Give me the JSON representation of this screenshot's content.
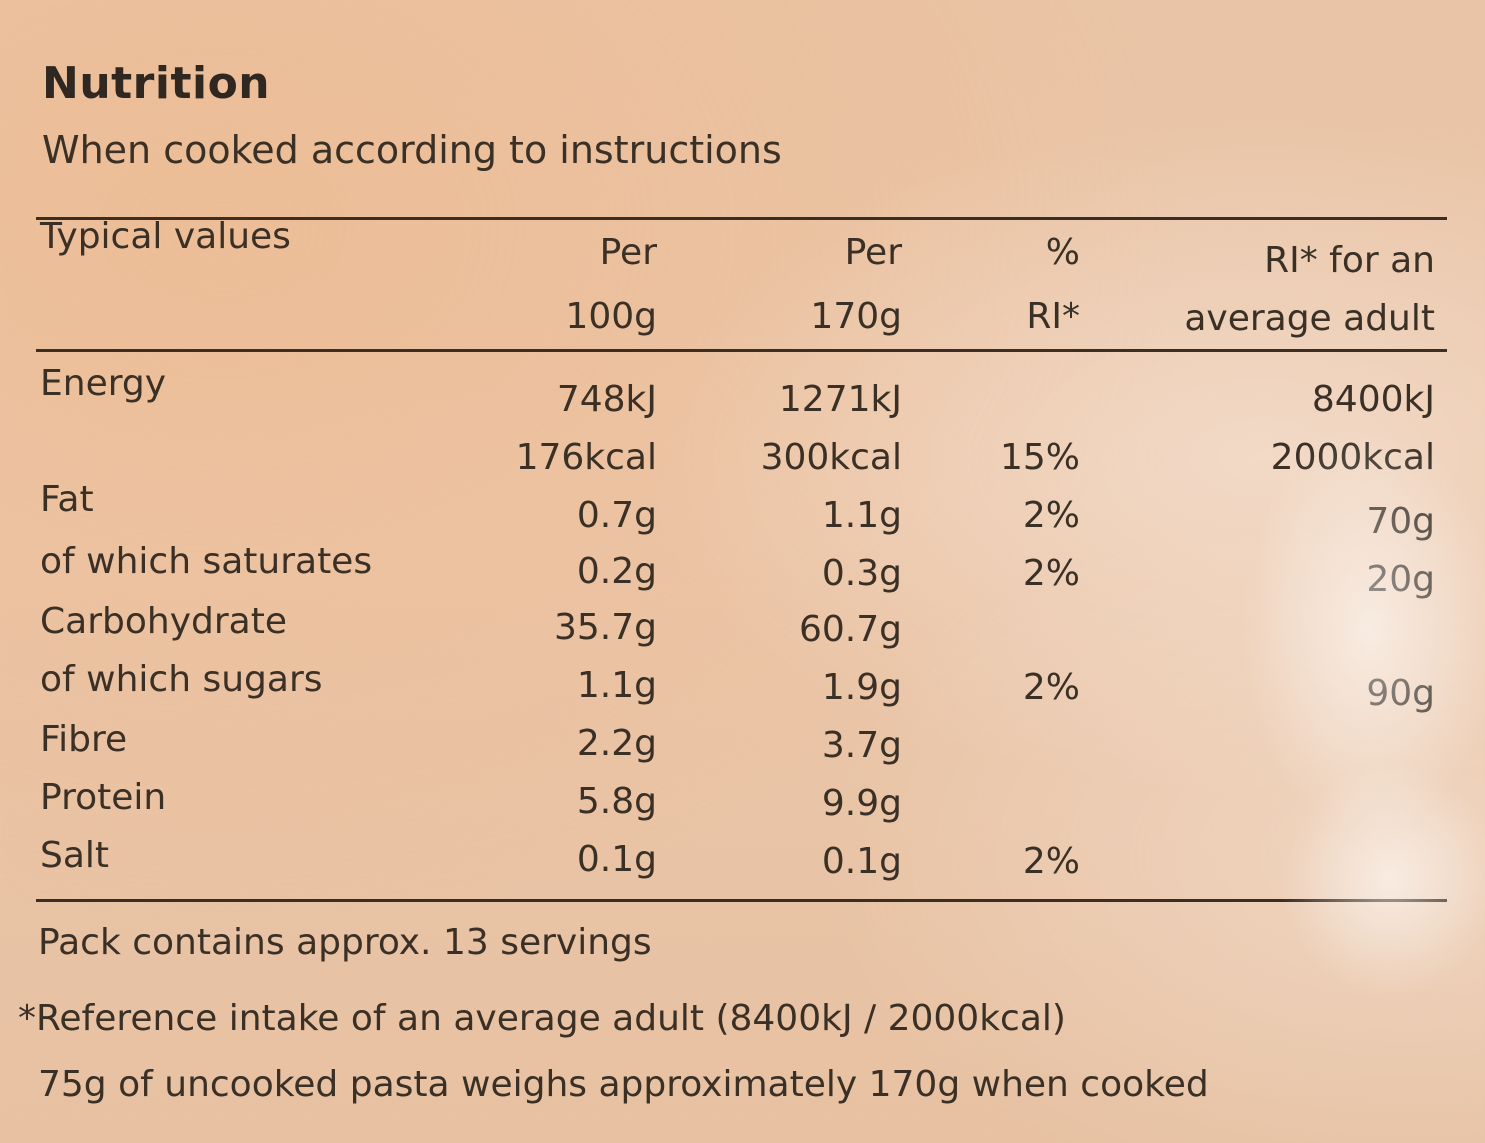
{
  "title": "Nutrition",
  "subtitle": "When cooked according to instructions",
  "table": {
    "headers": {
      "typical": "Typical values",
      "per100_line1": "Per",
      "per100_line2": "100g",
      "per170_line1": "Per",
      "per170_line2": "170g",
      "ri_line1": "%",
      "ri_line2": "RI*",
      "adult_line1": "RI* for an",
      "adult_line2": "average adult"
    },
    "rows": [
      {
        "name": "Energy",
        "per100": "748kJ",
        "per170": "1271kJ",
        "ri": "",
        "adult": "8400kJ"
      },
      {
        "name": "",
        "per100": "176kcal",
        "per170": "300kcal",
        "ri": "15%",
        "adult": "2000kcal"
      },
      {
        "name": "Fat",
        "per100": "0.7g",
        "per170": "1.1g",
        "ri": "2%",
        "adult": "70g"
      },
      {
        "name": "of which saturates",
        "per100": "0.2g",
        "per170": "0.3g",
        "ri": "2%",
        "adult": "20g"
      },
      {
        "name": "Carbohydrate",
        "per100": "35.7g",
        "per170": "60.7g",
        "ri": "",
        "adult": ""
      },
      {
        "name": "of which sugars",
        "per100": "1.1g",
        "per170": "1.9g",
        "ri": "2%",
        "adult": "90g"
      },
      {
        "name": "Fibre",
        "per100": "2.2g",
        "per170": "3.7g",
        "ri": "",
        "adult": ""
      },
      {
        "name": "Protein",
        "per100": "5.8g",
        "per170": "9.9g",
        "ri": "",
        "adult": ""
      },
      {
        "name": "Salt",
        "per100": "0.1g",
        "per170": "0.1g",
        "ri": "2%",
        "adult": ""
      }
    ]
  },
  "footer": {
    "servings": "Pack contains approx. 13 servings",
    "reference": "*Reference intake of an average adult (8400kJ / 2000kcal)",
    "pasta_note": "75g of uncooked pasta weighs approximately 170g when cooked"
  }
}
